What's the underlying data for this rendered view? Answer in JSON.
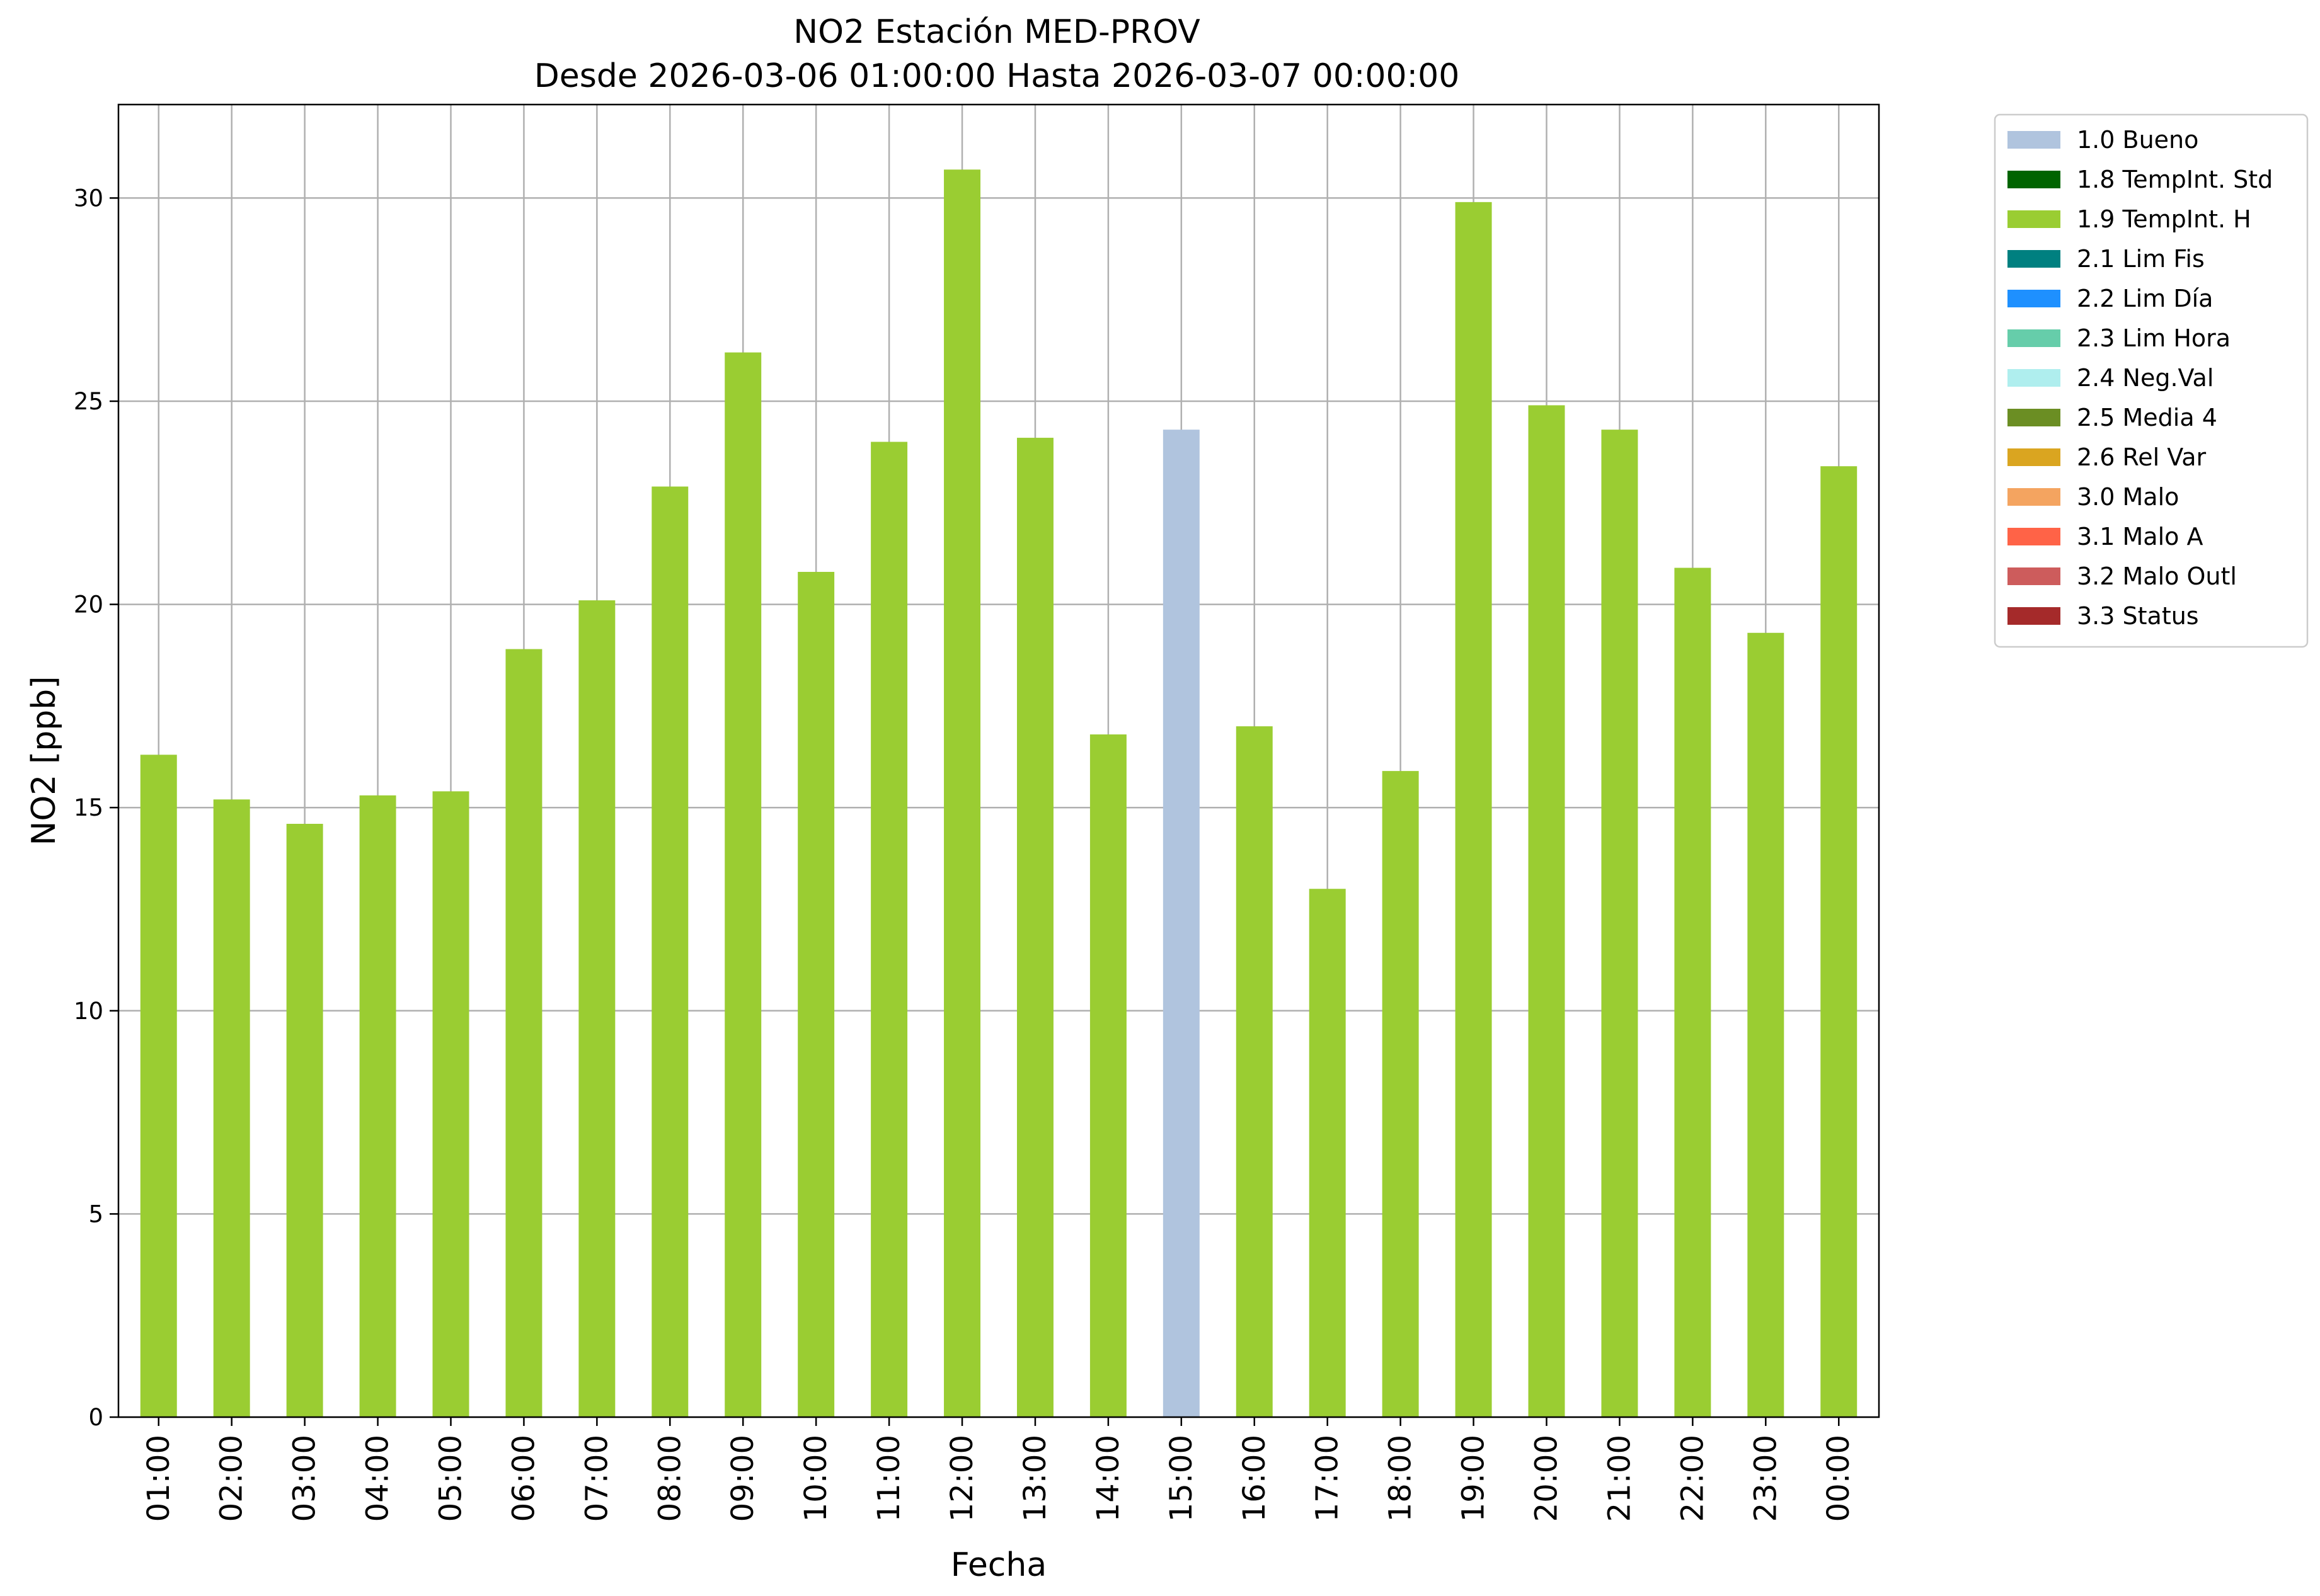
{
  "chart_data": {
    "type": "bar",
    "title": "NO2 Estación MED-PROV",
    "subtitle": "Desde 2026-03-06 01:00:00 Hasta 2026-03-07 00:00:00",
    "xlabel": "Fecha",
    "ylabel": "NO2 [ppb]",
    "ylim": [
      0,
      32.3
    ],
    "yticks": [
      0,
      5,
      10,
      15,
      20,
      25,
      30
    ],
    "grid": true,
    "legend_position": "outside-top-right",
    "categories": [
      "01:00",
      "02:00",
      "03:00",
      "04:00",
      "05:00",
      "06:00",
      "07:00",
      "08:00",
      "09:00",
      "10:00",
      "11:00",
      "12:00",
      "13:00",
      "14:00",
      "15:00",
      "16:00",
      "17:00",
      "18:00",
      "19:00",
      "20:00",
      "21:00",
      "22:00",
      "23:00",
      "00:00"
    ],
    "values": [
      16.3,
      15.2,
      14.6,
      15.3,
      15.4,
      18.9,
      20.1,
      22.9,
      26.2,
      20.8,
      24.0,
      30.7,
      24.1,
      16.8,
      24.3,
      17.0,
      13.0,
      15.9,
      29.9,
      24.9,
      24.3,
      20.9,
      19.3,
      23.4
    ],
    "bar_flags": [
      "1.9 TempInt. H",
      "1.9 TempInt. H",
      "1.9 TempInt. H",
      "1.9 TempInt. H",
      "1.9 TempInt. H",
      "1.9 TempInt. H",
      "1.9 TempInt. H",
      "1.9 TempInt. H",
      "1.9 TempInt. H",
      "1.9 TempInt. H",
      "1.9 TempInt. H",
      "1.9 TempInt. H",
      "1.9 TempInt. H",
      "1.9 TempInt. H",
      "1.0 Bueno",
      "1.9 TempInt. H",
      "1.9 TempInt. H",
      "1.9 TempInt. H",
      "1.9 TempInt. H",
      "1.9 TempInt. H",
      "1.9 TempInt. H",
      "1.9 TempInt. H",
      "1.9 TempInt. H",
      "1.9 TempInt. H"
    ],
    "legend": [
      {
        "label": "1.0 Bueno",
        "color": "#b0c4de"
      },
      {
        "label": "1.8 TempInt. Std",
        "color": "#006400"
      },
      {
        "label": "1.9 TempInt. H",
        "color": "#9acd32"
      },
      {
        "label": "2.1 Lim Fis",
        "color": "#008080"
      },
      {
        "label": "2.2 Lim Día",
        "color": "#1e90ff"
      },
      {
        "label": "2.3 Lim Hora",
        "color": "#66cdaa"
      },
      {
        "label": "2.4 Neg.Val",
        "color": "#afeeee"
      },
      {
        "label": "2.5 Media 4",
        "color": "#6b8e23"
      },
      {
        "label": "2.6 Rel Var",
        "color": "#daa520"
      },
      {
        "label": "3.0 Malo",
        "color": "#f4a460"
      },
      {
        "label": "3.1 Malo A",
        "color": "#ff6347"
      },
      {
        "label": "3.2 Malo Outl",
        "color": "#cd5c5c"
      },
      {
        "label": "3.3 Status",
        "color": "#a52a2a"
      }
    ]
  }
}
